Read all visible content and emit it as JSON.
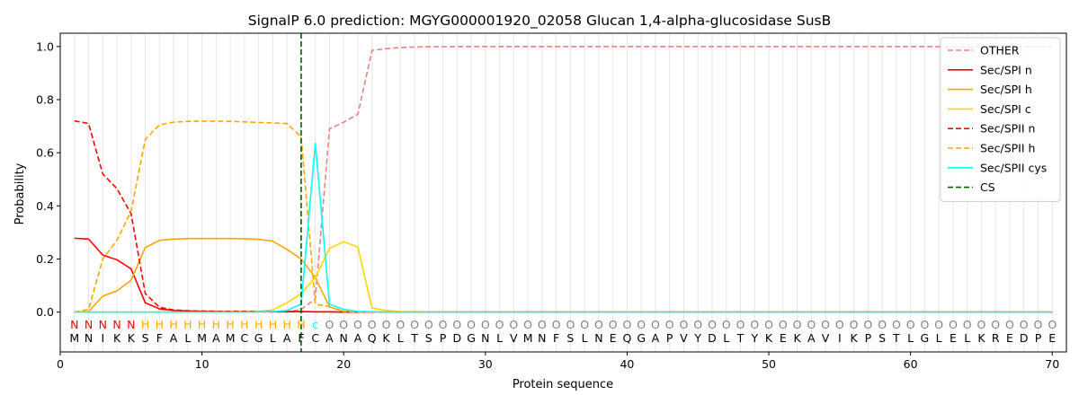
{
  "chart_data": {
    "type": "line",
    "title": "SignalP 6.0 prediction: MGYG000001920_02058 Glucan 1,4-alpha-glucosidase SusB",
    "xlabel": "Protein sequence",
    "ylabel": "Probability",
    "xlim": [
      0,
      71
    ],
    "ylim": [
      -0.15,
      1.05
    ],
    "xticks": [
      0,
      10,
      20,
      30,
      40,
      50,
      60,
      70
    ],
    "yticks": [
      0.0,
      0.2,
      0.4,
      0.6,
      0.8,
      1.0
    ],
    "xtick_labels": [
      "0",
      "10",
      "20",
      "30",
      "40",
      "50",
      "60",
      "70"
    ],
    "ytick_labels": [
      "0.0",
      "0.2",
      "0.4",
      "0.6",
      "0.8",
      "1.0"
    ],
    "grid": "vertical lines at each residue",
    "legend_position": "top-right",
    "sequence": [
      "M",
      "N",
      "I",
      "K",
      "K",
      "S",
      "F",
      "A",
      "L",
      "M",
      "A",
      "M",
      "C",
      "G",
      "L",
      "A",
      "F",
      "C",
      "A",
      "N",
      "A",
      "Q",
      "K",
      "L",
      "T",
      "S",
      "P",
      "D",
      "G",
      "N",
      "L",
      "V",
      "M",
      "N",
      "F",
      "S",
      "L",
      "N",
      "E",
      "Q",
      "G",
      "A",
      "P",
      "V",
      "Y",
      "D",
      "L",
      "T",
      "Y",
      "K",
      "E",
      "K",
      "A",
      "V",
      "I",
      "K",
      "P",
      "S",
      "T",
      "L",
      "G",
      "L",
      "E",
      "L",
      "K",
      "R",
      "E",
      "D",
      "P",
      "E"
    ],
    "region_labels": [
      "N",
      "N",
      "N",
      "N",
      "N",
      "H",
      "H",
      "H",
      "H",
      "H",
      "H",
      "H",
      "H",
      "H",
      "H",
      "H",
      "H",
      "c",
      "O",
      "O",
      "O",
      "O",
      "O",
      "O",
      "O",
      "O",
      "O",
      "O",
      "O",
      "O",
      "O",
      "O",
      "O",
      "O",
      "O",
      "O",
      "O",
      "O",
      "O",
      "O",
      "O",
      "O",
      "O",
      "O",
      "O",
      "O",
      "O",
      "O",
      "O",
      "O",
      "O",
      "O",
      "O",
      "O",
      "O",
      "O",
      "O",
      "O",
      "O",
      "O",
      "O",
      "O",
      "O",
      "O",
      "O",
      "O",
      "O",
      "O",
      "O",
      "O"
    ],
    "region_colors": {
      "N": "#ff0000",
      "H": "#ffa500",
      "c": "#00ffff",
      "O": "#808080"
    },
    "cleavage_site": {
      "name": "CS",
      "x": 17,
      "color": "#006400"
    },
    "series": [
      {
        "name": "OTHER",
        "color": "#f08080",
        "dash": "dashed",
        "values": [
          0.0,
          0.0,
          0.0,
          0.0,
          0.0,
          0.0,
          0.0,
          0.0,
          0.0,
          0.0,
          0.0,
          0.0,
          0.0,
          0.0,
          0.0,
          0.0,
          0.01,
          0.05,
          0.69,
          0.715,
          0.745,
          0.985,
          0.992,
          0.996,
          0.998,
          0.999,
          0.999,
          1.0,
          1.0,
          1.0,
          1.0,
          1.0,
          1.0,
          1.0,
          1.0,
          1.0,
          1.0,
          1.0,
          1.0,
          1.0,
          1.0,
          1.0,
          1.0,
          1.0,
          1.0,
          1.0,
          1.0,
          1.0,
          1.0,
          1.0,
          1.0,
          1.0,
          1.0,
          1.0,
          1.0,
          1.0,
          1.0,
          1.0,
          1.0,
          1.0,
          1.0,
          0.999,
          0.999,
          0.999,
          0.999,
          0.999,
          0.999,
          0.999,
          0.999,
          0.999
        ]
      },
      {
        "name": "Sec/SPI n",
        "color": "#ff0000",
        "dash": "solid",
        "values": [
          0.278,
          0.275,
          0.215,
          0.197,
          0.163,
          0.035,
          0.012,
          0.006,
          0.004,
          0.003,
          0.002,
          0.002,
          0.002,
          0.002,
          0.002,
          0.002,
          0.002,
          0.001,
          0.001,
          0.0,
          0.0,
          0.0,
          0.0,
          0.0,
          0.0,
          0.0,
          0.0,
          0.0,
          0.0,
          0.0,
          0.0,
          0.0,
          0.0,
          0.0,
          0.0,
          0.0,
          0.0,
          0.0,
          0.0,
          0.0,
          0.0,
          0.0,
          0.0,
          0.0,
          0.0,
          0.0,
          0.0,
          0.0,
          0.0,
          0.0,
          0.0,
          0.0,
          0.0,
          0.0,
          0.0,
          0.0,
          0.0,
          0.0,
          0.0,
          0.0,
          0.0,
          0.0,
          0.0,
          0.0,
          0.0,
          0.0,
          0.0,
          0.0,
          0.0,
          0.0
        ]
      },
      {
        "name": "Sec/SPI h",
        "color": "#ffa500",
        "dash": "solid",
        "values": [
          0.0,
          0.002,
          0.06,
          0.08,
          0.12,
          0.243,
          0.27,
          0.275,
          0.277,
          0.277,
          0.277,
          0.277,
          0.276,
          0.274,
          0.267,
          0.236,
          0.2,
          0.13,
          0.02,
          0.003,
          0.001,
          0.0,
          0.0,
          0.0,
          0.0,
          0.0,
          0.0,
          0.0,
          0.0,
          0.0,
          0.0,
          0.0,
          0.0,
          0.0,
          0.0,
          0.0,
          0.0,
          0.0,
          0.0,
          0.0,
          0.0,
          0.0,
          0.0,
          0.0,
          0.0,
          0.0,
          0.0,
          0.0,
          0.0,
          0.0,
          0.0,
          0.0,
          0.0,
          0.0,
          0.0,
          0.0,
          0.0,
          0.0,
          0.0,
          0.0,
          0.0,
          0.0,
          0.0,
          0.0,
          0.0,
          0.0,
          0.0,
          0.0,
          0.0,
          0.0
        ]
      },
      {
        "name": "Sec/SPI c",
        "color": "#ffd700",
        "dash": "solid",
        "values": [
          0.0,
          0.0,
          0.0,
          0.0,
          0.0,
          0.0,
          0.0,
          0.0,
          0.0,
          0.0,
          0.0,
          0.001,
          0.002,
          0.003,
          0.008,
          0.035,
          0.07,
          0.13,
          0.24,
          0.265,
          0.245,
          0.015,
          0.006,
          0.002,
          0.001,
          0.0,
          0.0,
          0.0,
          0.0,
          0.0,
          0.0,
          0.0,
          0.0,
          0.0,
          0.0,
          0.0,
          0.0,
          0.0,
          0.0,
          0.0,
          0.0,
          0.0,
          0.0,
          0.0,
          0.0,
          0.0,
          0.0,
          0.0,
          0.0,
          0.0,
          0.0,
          0.0,
          0.0,
          0.0,
          0.0,
          0.0,
          0.0,
          0.0,
          0.0,
          0.0,
          0.0,
          0.0,
          0.0,
          0.0,
          0.0,
          0.0,
          0.0,
          0.0,
          0.0,
          0.0
        ]
      },
      {
        "name": "Sec/SPII n",
        "color": "#ff0000",
        "dash": "dashed",
        "values": [
          0.72,
          0.71,
          0.52,
          0.465,
          0.37,
          0.07,
          0.018,
          0.008,
          0.005,
          0.004,
          0.003,
          0.003,
          0.003,
          0.002,
          0.002,
          0.002,
          0.002,
          0.001,
          0.001,
          0.0,
          0.0,
          0.0,
          0.0,
          0.0,
          0.0,
          0.0,
          0.0,
          0.0,
          0.0,
          0.0,
          0.0,
          0.0,
          0.0,
          0.0,
          0.0,
          0.0,
          0.0,
          0.0,
          0.0,
          0.0,
          0.0,
          0.0,
          0.0,
          0.0,
          0.0,
          0.0,
          0.0,
          0.0,
          0.0,
          0.0,
          0.0,
          0.0,
          0.0,
          0.0,
          0.0,
          0.0,
          0.0,
          0.0,
          0.0,
          0.0,
          0.0,
          0.0,
          0.0,
          0.0,
          0.0,
          0.0,
          0.0,
          0.0,
          0.0,
          0.0
        ]
      },
      {
        "name": "Sec/SPII h",
        "color": "#ffa500",
        "dash": "dashed",
        "values": [
          0.0,
          0.01,
          0.2,
          0.27,
          0.38,
          0.65,
          0.705,
          0.715,
          0.718,
          0.719,
          0.719,
          0.718,
          0.716,
          0.714,
          0.712,
          0.71,
          0.66,
          0.03,
          0.02,
          0.002,
          0.001,
          0.0,
          0.0,
          0.0,
          0.0,
          0.0,
          0.0,
          0.0,
          0.0,
          0.0,
          0.0,
          0.0,
          0.0,
          0.0,
          0.0,
          0.0,
          0.0,
          0.0,
          0.0,
          0.0,
          0.0,
          0.0,
          0.0,
          0.0,
          0.0,
          0.0,
          0.0,
          0.0,
          0.0,
          0.0,
          0.0,
          0.0,
          0.0,
          0.0,
          0.0,
          0.0,
          0.0,
          0.0,
          0.0,
          0.0,
          0.0,
          0.0,
          0.0,
          0.0,
          0.0,
          0.0,
          0.0,
          0.0,
          0.0,
          0.0
        ]
      },
      {
        "name": "Sec/SPII cys",
        "color": "#00ffff",
        "dash": "solid",
        "values": [
          0.0,
          0.0,
          0.0,
          0.0,
          0.0,
          0.0,
          0.0,
          0.0,
          0.0,
          0.0,
          0.0,
          0.0,
          0.0,
          0.001,
          0.002,
          0.006,
          0.03,
          0.635,
          0.03,
          0.01,
          0.003,
          0.001,
          0.0,
          0.0,
          0.0,
          0.0,
          0.0,
          0.0,
          0.0,
          0.0,
          0.0,
          0.0,
          0.0,
          0.0,
          0.0,
          0.0,
          0.0,
          0.0,
          0.0,
          0.0,
          0.0,
          0.0,
          0.0,
          0.0,
          0.0,
          0.0,
          0.0,
          0.0,
          0.0,
          0.0,
          0.0,
          0.0,
          0.0,
          0.0,
          0.0,
          0.0,
          0.0,
          0.0,
          0.0,
          0.0,
          0.0,
          0.0,
          0.0,
          0.0,
          0.0,
          0.0,
          0.0,
          0.0,
          0.0,
          0.0
        ]
      }
    ]
  }
}
